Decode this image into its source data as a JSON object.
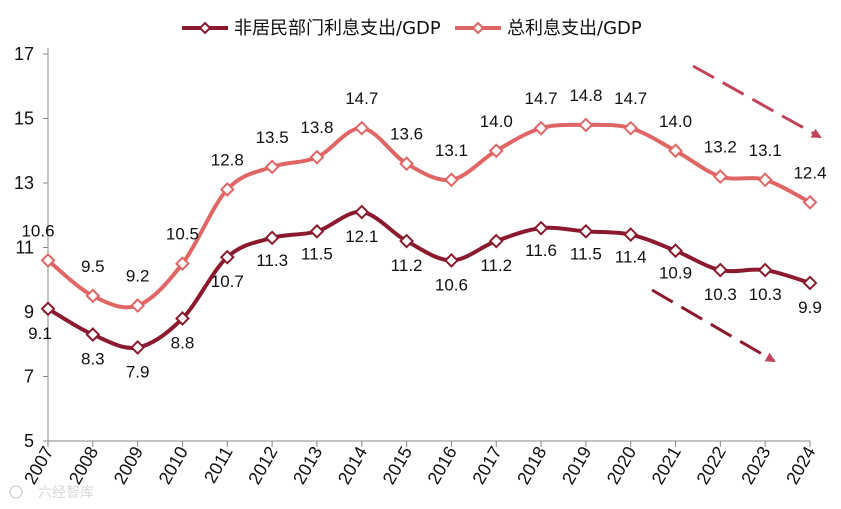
{
  "chart_data": {
    "type": "line",
    "title": "",
    "xlabel": "",
    "ylabel": "",
    "ylim": [
      5,
      17
    ],
    "yticks": [
      5,
      7,
      9,
      11,
      13,
      15,
      17
    ],
    "categories": [
      "2007",
      "2008",
      "2009",
      "2010",
      "2011",
      "2012",
      "2013",
      "2014",
      "2015",
      "2016",
      "2017",
      "2018",
      "2019",
      "2020",
      "2021",
      "2022",
      "2023",
      "2024"
    ],
    "series": [
      {
        "name": "非居民部门利息支出/GDP",
        "color": "#8b1a2e",
        "values": [
          9.1,
          8.3,
          7.9,
          8.8,
          10.7,
          11.3,
          11.5,
          12.1,
          11.2,
          10.6,
          11.2,
          11.6,
          11.5,
          11.4,
          10.9,
          10.3,
          10.3,
          9.9
        ],
        "labels": [
          "9.1",
          "8.3",
          "7.9",
          "8.8",
          "10.7",
          "11.3",
          "11.5",
          "12.1",
          "11.2",
          "10.6",
          "11.2",
          "11.6",
          "11.5",
          "11.4",
          "10.9",
          "10.3",
          "10.3",
          "9.9"
        ]
      },
      {
        "name": "总利息支出/GDP",
        "color": "#e06666",
        "values": [
          10.6,
          9.5,
          9.2,
          10.5,
          12.8,
          13.5,
          13.8,
          14.7,
          13.6,
          13.1,
          14.0,
          14.7,
          14.8,
          14.7,
          14.0,
          13.2,
          13.1,
          12.4
        ],
        "labels": [
          "10.6",
          "9.5",
          "9.2",
          "10.5",
          "12.8",
          "13.5",
          "13.8",
          "14.7",
          "13.6",
          "13.1",
          "14.0",
          "14.7",
          "14.8",
          "14.7",
          "14.0",
          "13.2",
          "13.1",
          "12.4"
        ]
      }
    ],
    "annotations": [
      "downward-trend-arrow-total",
      "downward-trend-arrow-nonresident"
    ],
    "legend_position": "top",
    "grid": false
  },
  "watermark": "六经智库"
}
